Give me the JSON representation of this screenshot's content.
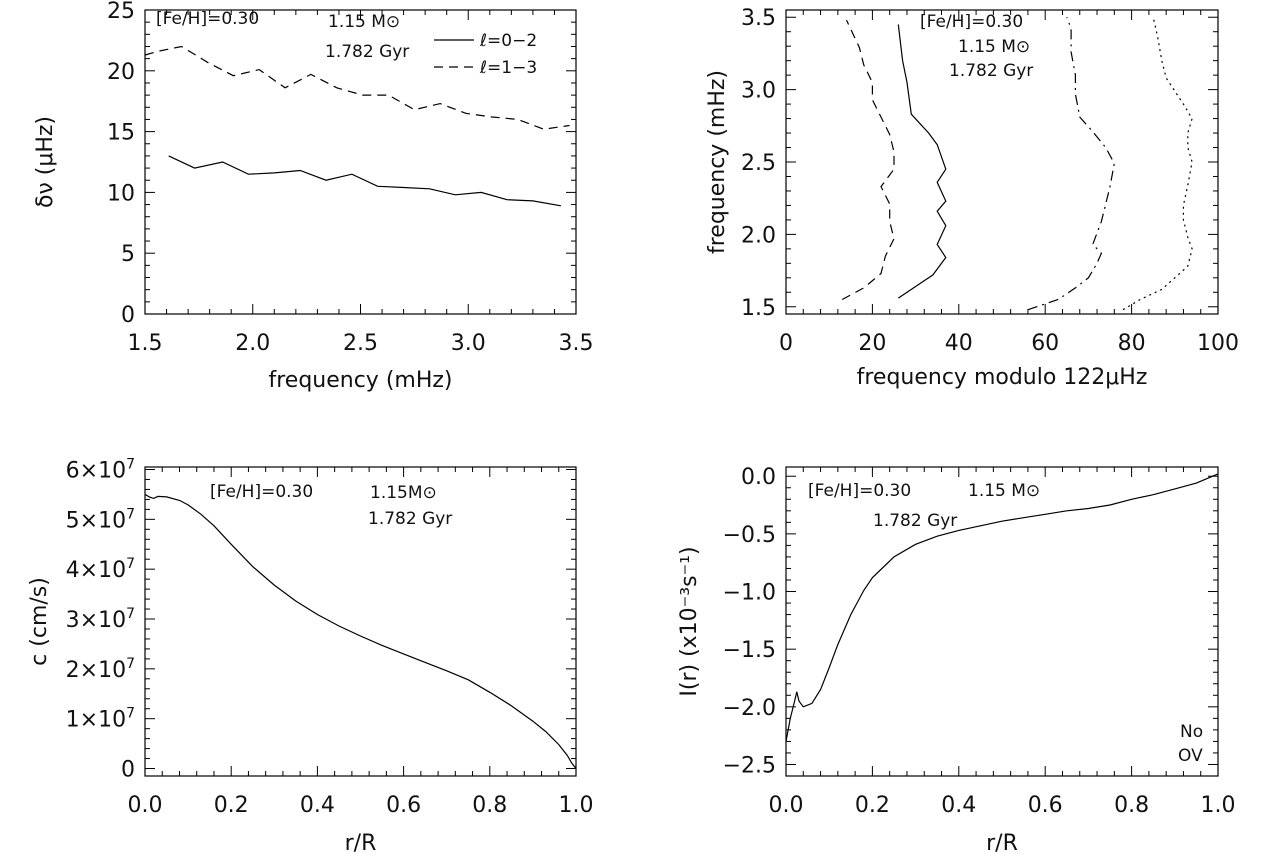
{
  "chart_data": [
    {
      "type": "line",
      "xlabel": "frequency (mHz)",
      "ylabel": "δν (μHz)",
      "xlim": [
        1.5,
        3.5
      ],
      "ylim": [
        0,
        25
      ],
      "xticks": [
        1.5,
        2.0,
        2.5,
        3.0,
        3.5
      ],
      "xtick_labels": [
        "1.5",
        "2.0",
        "2.5",
        "3.0",
        "3.5"
      ],
      "yticks": [
        0,
        5,
        10,
        15,
        20,
        25
      ],
      "ytick_labels": [
        "0",
        "5",
        "10",
        "15",
        "20",
        "25"
      ],
      "annotations": [
        "[Fe/H]=0.30",
        "1.15 M⊙",
        "1.782 Gyr"
      ],
      "legend": "top-right",
      "series": [
        {
          "name": "ℓ=0−2",
          "style": "solid",
          "x": [
            1.61,
            1.73,
            1.86,
            1.98,
            2.1,
            2.22,
            2.34,
            2.46,
            2.58,
            2.7,
            2.82,
            2.94,
            3.06,
            3.18,
            3.3,
            3.43
          ],
          "y": [
            13.0,
            12.0,
            12.5,
            11.5,
            11.6,
            11.8,
            11.0,
            11.5,
            10.5,
            10.4,
            10.3,
            9.8,
            10.0,
            9.4,
            9.3,
            8.9
          ]
        },
        {
          "name": "ℓ=1−3",
          "style": "dashed",
          "x": [
            1.5,
            1.56,
            1.67,
            1.79,
            1.91,
            2.03,
            2.15,
            2.27,
            2.39,
            2.51,
            2.63,
            2.75,
            2.87,
            2.99,
            3.11,
            3.23,
            3.35,
            3.47
          ],
          "y": [
            21.3,
            21.6,
            22.0,
            20.7,
            19.6,
            20.1,
            18.6,
            19.7,
            18.6,
            18.0,
            18.0,
            16.8,
            17.3,
            16.5,
            16.2,
            16.0,
            15.2,
            15.5
          ]
        }
      ]
    },
    {
      "type": "line",
      "xlabel": "frequency modulo 122μHz",
      "ylabel": "frequency (mHz)",
      "xlim": [
        0,
        100
      ],
      "ylim": [
        1.45,
        3.55
      ],
      "xticks": [
        0,
        20,
        40,
        60,
        80,
        100
      ],
      "xtick_labels": [
        "0",
        "20",
        "40",
        "60",
        "80",
        "100"
      ],
      "yticks": [
        1.5,
        2.0,
        2.5,
        3.0,
        3.5
      ],
      "ytick_labels": [
        "1.5",
        "2.0",
        "2.5",
        "3.0",
        "3.5"
      ],
      "annotations": [
        "[Fe/H]=0.30",
        "1.15 M⊙",
        "1.782 Gyr"
      ],
      "series": [
        {
          "style": "dashed",
          "x": [
            13,
            18,
            22,
            23,
            25,
            24,
            24,
            22,
            25,
            25,
            24,
            22,
            20,
            20,
            18,
            17,
            14
          ],
          "y": [
            1.55,
            1.63,
            1.73,
            1.85,
            1.97,
            2.09,
            2.21,
            2.33,
            2.45,
            2.57,
            2.69,
            2.81,
            2.93,
            3.05,
            3.17,
            3.29,
            3.48
          ]
        },
        {
          "style": "solid",
          "x": [
            26,
            31,
            34,
            37,
            35,
            37,
            35,
            37,
            35,
            37,
            35,
            33,
            29,
            28,
            27,
            26
          ],
          "y": [
            1.56,
            1.66,
            1.72,
            1.84,
            1.93,
            2.06,
            2.16,
            2.23,
            2.36,
            2.45,
            2.62,
            2.7,
            2.83,
            3.05,
            3.2,
            3.45
          ]
        },
        {
          "style": "dashdot",
          "x": [
            56,
            63,
            67,
            70,
            72,
            73,
            71,
            73,
            75,
            76,
            74,
            71,
            68,
            67,
            67,
            66,
            66,
            65
          ],
          "y": [
            1.48,
            1.55,
            1.63,
            1.7,
            1.8,
            1.87,
            1.93,
            2.09,
            2.33,
            2.49,
            2.6,
            2.71,
            2.81,
            2.97,
            3.1,
            3.26,
            3.42,
            3.5
          ]
        },
        {
          "style": "dotted",
          "x": [
            78,
            82,
            87,
            90,
            93,
            94,
            93,
            92,
            92,
            93,
            94,
            93,
            93,
            94,
            92,
            88,
            87,
            86,
            85
          ],
          "y": [
            1.48,
            1.55,
            1.62,
            1.7,
            1.78,
            1.9,
            1.98,
            2.1,
            2.2,
            2.34,
            2.5,
            2.6,
            2.7,
            2.8,
            2.9,
            3.08,
            3.2,
            3.37,
            3.5
          ]
        }
      ]
    },
    {
      "type": "line",
      "xlabel": "r/R",
      "ylabel": "c (cm/s)",
      "xlim": [
        0.0,
        1.0
      ],
      "ylim": [
        -1500000,
        60500000
      ],
      "xticks": [
        0.0,
        0.2,
        0.4,
        0.6,
        0.8,
        1.0
      ],
      "xtick_labels": [
        "0.0",
        "0.2",
        "0.4",
        "0.6",
        "0.8",
        "1.0"
      ],
      "yticks": [
        0,
        10000000,
        20000000,
        30000000,
        40000000,
        50000000,
        60000000
      ],
      "ytick_labels": [
        "0",
        "1×10",
        "2×10",
        "3×10",
        "4×10",
        "5×10",
        "6×10"
      ],
      "ytick_exponent": [
        "",
        "7",
        "7",
        "7",
        "7",
        "7",
        "7"
      ],
      "annotations": [
        "[Fe/H]=0.30",
        "1.15M⊙",
        "1.782 Gyr"
      ],
      "series": [
        {
          "style": "solid",
          "x": [
            0.0,
            0.01,
            0.02,
            0.03,
            0.05,
            0.08,
            0.1,
            0.13,
            0.16,
            0.2,
            0.25,
            0.3,
            0.35,
            0.4,
            0.45,
            0.5,
            0.55,
            0.6,
            0.65,
            0.7,
            0.75,
            0.8,
            0.85,
            0.9,
            0.93,
            0.96,
            0.98,
            0.99,
            1.0
          ],
          "y": [
            55000000,
            54500000,
            54200000,
            54600000,
            54500000,
            53800000,
            52900000,
            51000000,
            48700000,
            45000000,
            40500000,
            36800000,
            33600000,
            30900000,
            28600000,
            26600000,
            24700000,
            23000000,
            21300000,
            19600000,
            17800000,
            15300000,
            12600000,
            9500000,
            7400000,
            4800000,
            2600000,
            1100000,
            0
          ]
        }
      ]
    },
    {
      "type": "line",
      "xlabel": "r/R",
      "ylabel": "I(r) (x10⁻³s⁻¹)",
      "xlim": [
        0.0,
        1.0
      ],
      "ylim": [
        -2.6,
        0.08
      ],
      "xticks": [
        0.0,
        0.2,
        0.4,
        0.6,
        0.8,
        1.0
      ],
      "xtick_labels": [
        "0.0",
        "0.2",
        "0.4",
        "0.6",
        "0.8",
        "1.0"
      ],
      "yticks": [
        -2.5,
        -2.0,
        -1.5,
        -1.0,
        -0.5,
        0.0
      ],
      "ytick_labels": [
        "−2.5",
        "−2.0",
        "−1.5",
        "−1.0",
        "−0.5",
        "0.0"
      ],
      "annotations": [
        "[Fe/H]=0.30",
        "1.15 M⊙",
        "1.782 Gyr",
        "No",
        "OV"
      ],
      "series": [
        {
          "style": "solid",
          "x": [
            0.0,
            0.01,
            0.02,
            0.025,
            0.03,
            0.04,
            0.06,
            0.08,
            0.1,
            0.12,
            0.15,
            0.18,
            0.2,
            0.25,
            0.3,
            0.35,
            0.4,
            0.45,
            0.5,
            0.55,
            0.6,
            0.65,
            0.7,
            0.75,
            0.8,
            0.85,
            0.9,
            0.95,
            1.0
          ],
          "y": [
            -2.3,
            -2.1,
            -1.95,
            -1.87,
            -1.95,
            -2.0,
            -1.97,
            -1.85,
            -1.66,
            -1.46,
            -1.2,
            -0.99,
            -0.88,
            -0.7,
            -0.59,
            -0.52,
            -0.47,
            -0.43,
            -0.39,
            -0.36,
            -0.33,
            -0.3,
            -0.28,
            -0.25,
            -0.2,
            -0.16,
            -0.11,
            -0.06,
            0.02
          ]
        }
      ]
    }
  ]
}
